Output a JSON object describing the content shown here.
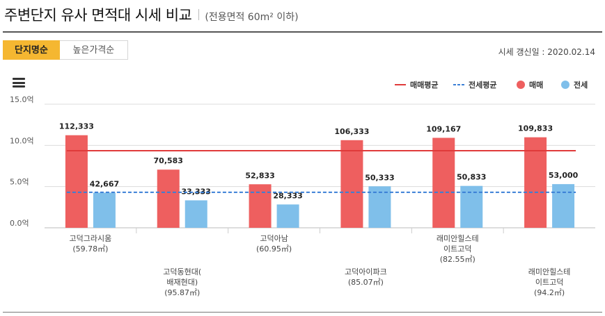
{
  "header": {
    "title": "주변단지 유사 면적대 시세 비교",
    "subtitle": "(전용면적 60m² 이하)"
  },
  "tabs": [
    {
      "label": "단지명순",
      "active": true
    },
    {
      "label": "높은가격순",
      "active": false
    }
  ],
  "updated": "시세 갱신일 : 2020.02.14",
  "chart_data": {
    "type": "bar",
    "title": "주변단지 유사 면적대 시세 비교",
    "ylim": [
      0,
      15
    ],
    "yticks": [
      "0.0억",
      "5.0억",
      "10.0억",
      "15.0억"
    ],
    "ytick_values": [
      0,
      5,
      10,
      15
    ],
    "categories": [
      [
        "고덕그라시움",
        "(59.78㎡)"
      ],
      [
        "고덕동현대(",
        "배재현대)",
        "(95.87㎡)"
      ],
      [
        "고덕아남",
        "(60.95㎡)"
      ],
      [
        "고덕아이파크",
        "(85.07㎡)"
      ],
      [
        "래미안힐스테",
        "이트고덕",
        "(82.55㎡)"
      ],
      [
        "래미안힐스테",
        "이트고덕",
        "(94.2㎡)"
      ]
    ],
    "series": [
      {
        "name": "매매",
        "color": "#ee5f5f",
        "values": [
          112333,
          70583,
          52833,
          106333,
          109167,
          109833
        ],
        "labels": [
          "112,333",
          "70,583",
          "52,833",
          "106,333",
          "109,167",
          "109,833"
        ]
      },
      {
        "name": "전세",
        "color": "#7fbfea",
        "values": [
          42667,
          33333,
          28333,
          50333,
          50833,
          53000
        ],
        "labels": [
          "42,667",
          "33,333",
          "28,333",
          "50,333",
          "50,833",
          "53,000"
        ]
      }
    ],
    "averages": [
      {
        "name": "매매평균",
        "value": 93500,
        "color": "#e03a3a",
        "style": "solid"
      },
      {
        "name": "전세평균",
        "value": 43083,
        "color": "#3a7fd6",
        "style": "dashed"
      }
    ],
    "legend": [
      "매매평균",
      "전세평균",
      "매매",
      "전세"
    ],
    "legend_position": "top-right",
    "grid": true
  }
}
